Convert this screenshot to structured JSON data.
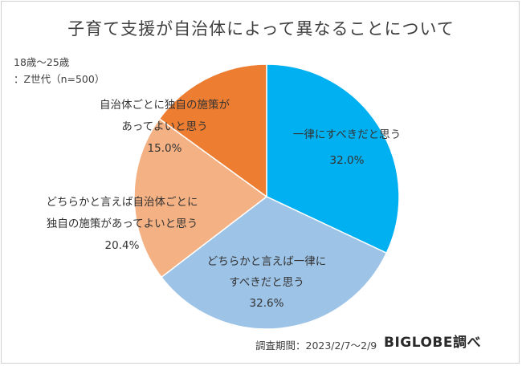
{
  "title": "子育て支援が自治体によって異なることについて",
  "sample_note_line1": "18歳～25歳",
  "sample_note_line2": "：Z世代（n=500）",
  "survey_period": "調査期間：2023/2/7～2/9",
  "brand": "BIGLOBE調べ",
  "chart_data": {
    "type": "pie",
    "start_angle_deg": 0,
    "direction": "clockwise",
    "slices": [
      {
        "label_lines": [
          "一律にすべきだと思う"
        ],
        "value_label": "32.0%",
        "value": 32.0,
        "color": "#00b0f0"
      },
      {
        "label_lines": [
          "どちらかと言えば一律に",
          "すべきだと思う"
        ],
        "value_label": "32.6%",
        "value": 32.6,
        "color": "#9dc3e6"
      },
      {
        "label_lines": [
          "どちらかと言えば自治体ごとに",
          "独自の施策があってよいと思う"
        ],
        "value_label": "20.4%",
        "value": 20.4,
        "color": "#f4b183"
      },
      {
        "label_lines": [
          "自治体ごとに独自の施策が",
          "あってよいと思う"
        ],
        "value_label": "15.0%",
        "value": 15.0,
        "color": "#ed7d31"
      }
    ]
  }
}
